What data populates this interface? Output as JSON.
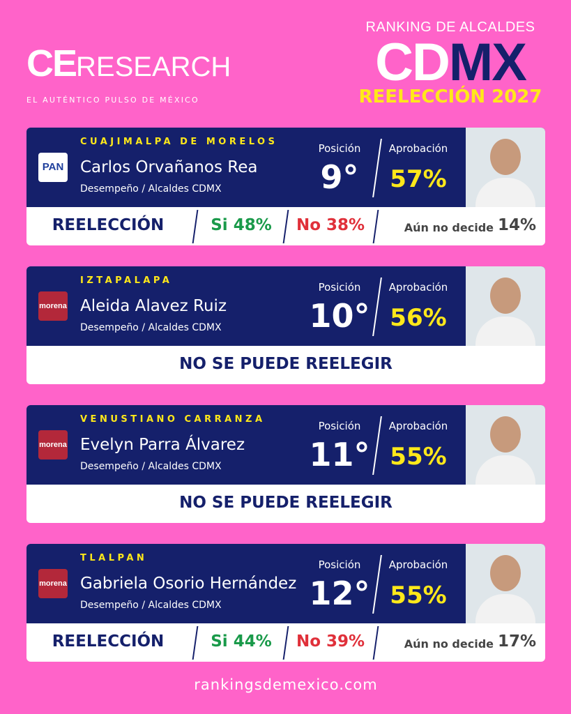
{
  "header": {
    "logo_ce": "CE",
    "logo_research": "RESEARCH",
    "tagline": "EL AUTÉNTICO PULSO DE MÉXICO",
    "ranking": "RANKING DE ALCALDES",
    "city_a": "CD",
    "city_b": "MX",
    "subtitle": "REELECCIÓN 2027"
  },
  "cards": [
    {
      "borough": "CUAJIMALPA DE MORELOS",
      "party": "PAN",
      "name": "Carlos Orvañanos Rea",
      "subtitle": "Desempeño / Alcaldes CDMX",
      "position_label": "Posición",
      "position": "9°",
      "approval_label": "Aprobación",
      "approval": "57%",
      "reelection": {
        "label": "REELECCIÓN",
        "yes": "Si 48%",
        "no": "No 38%",
        "undecided_label": "Aún no decide",
        "undecided": "14%"
      }
    },
    {
      "borough": "IZTAPALAPA",
      "party": "morena",
      "name": "Aleida Alavez Ruiz",
      "subtitle": "Desempeño / Alcaldes CDMX",
      "position_label": "Posición",
      "position": "10°",
      "approval_label": "Aprobación",
      "approval": "56%",
      "note": "NO SE PUEDE REELEGIR"
    },
    {
      "borough": "VENUSTIANO CARRANZA",
      "party": "morena",
      "name": "Evelyn Parra Álvarez",
      "subtitle": "Desempeño / Alcaldes CDMX",
      "position_label": "Posición",
      "position": "11°",
      "approval_label": "Aprobación",
      "approval": "55%",
      "note": "NO SE PUEDE REELEGIR"
    },
    {
      "borough": "TLALPAN",
      "party": "morena",
      "name": "Gabriela Osorio Hernández",
      "subtitle": "Desempeño / Alcaldes CDMX",
      "position_label": "Posición",
      "position": "12°",
      "approval_label": "Aprobación",
      "approval": "55%",
      "reelection": {
        "label": "REELECCIÓN",
        "yes": "Si 44%",
        "no": "No 39%",
        "undecided_label": "Aún no decide",
        "undecided": "17%"
      }
    }
  ],
  "footer": "rankingsdemexico.com"
}
